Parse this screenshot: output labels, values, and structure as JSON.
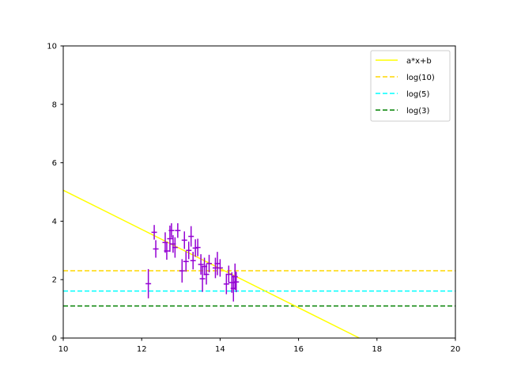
{
  "chart_data": {
    "type": "scatter",
    "xlim": [
      10,
      20
    ],
    "ylim": [
      0,
      10
    ],
    "x_ticks": [
      "10",
      "12",
      "14",
      "16",
      "18",
      "20"
    ],
    "y_ticks": [
      "0",
      "2",
      "4",
      "6",
      "8",
      "10"
    ],
    "grid": false,
    "legend_position": "top-right",
    "points": {
      "color": "#9400d3",
      "marker": "+",
      "data": [
        {
          "x": 12.17,
          "y": 1.86,
          "yerr": 0.5
        },
        {
          "x": 12.32,
          "y": 3.62,
          "yerr": 0.25
        },
        {
          "x": 12.36,
          "y": 3.05,
          "yerr": 0.3
        },
        {
          "x": 12.6,
          "y": 3.27,
          "yerr": 0.35
        },
        {
          "x": 12.64,
          "y": 2.98,
          "yerr": 0.3
        },
        {
          "x": 12.72,
          "y": 3.4,
          "yerr": 0.45
        },
        {
          "x": 12.76,
          "y": 3.68,
          "yerr": 0.25
        },
        {
          "x": 12.8,
          "y": 3.22,
          "yerr": 0.3
        },
        {
          "x": 12.85,
          "y": 3.1,
          "yerr": 0.35
        },
        {
          "x": 12.92,
          "y": 3.68,
          "yerr": 0.25
        },
        {
          "x": 13.03,
          "y": 2.3,
          "yerr": 0.4
        },
        {
          "x": 13.09,
          "y": 3.35,
          "yerr": 0.3
        },
        {
          "x": 13.13,
          "y": 2.62,
          "yerr": 0.35
        },
        {
          "x": 13.2,
          "y": 3.0,
          "yerr": 0.3
        },
        {
          "x": 13.26,
          "y": 3.48,
          "yerr": 0.35
        },
        {
          "x": 13.31,
          "y": 2.65,
          "yerr": 0.3
        },
        {
          "x": 13.37,
          "y": 3.08,
          "yerr": 0.3
        },
        {
          "x": 13.43,
          "y": 3.1,
          "yerr": 0.3
        },
        {
          "x": 13.51,
          "y": 2.52,
          "yerr": 0.35
        },
        {
          "x": 13.55,
          "y": 2.03,
          "yerr": 0.45
        },
        {
          "x": 13.6,
          "y": 2.45,
          "yerr": 0.3
        },
        {
          "x": 13.65,
          "y": 2.18,
          "yerr": 0.35
        },
        {
          "x": 13.72,
          "y": 2.55,
          "yerr": 0.3
        },
        {
          "x": 13.88,
          "y": 2.4,
          "yerr": 0.35
        },
        {
          "x": 13.93,
          "y": 2.55,
          "yerr": 0.4
        },
        {
          "x": 14.0,
          "y": 2.4,
          "yerr": 0.3
        },
        {
          "x": 14.16,
          "y": 1.85,
          "yerr": 0.35
        },
        {
          "x": 14.22,
          "y": 2.18,
          "yerr": 0.3
        },
        {
          "x": 14.3,
          "y": 1.9,
          "yerr": 0.35
        },
        {
          "x": 14.34,
          "y": 1.7,
          "yerr": 0.45
        },
        {
          "x": 14.38,
          "y": 2.1,
          "yerr": 0.45
        },
        {
          "x": 14.41,
          "y": 1.92,
          "yerr": 0.35
        }
      ]
    },
    "fit_line": {
      "label": "a*x+b",
      "color": "#ffff00",
      "style": "solid",
      "x": [
        10,
        17.55
      ],
      "y": [
        5.06,
        0
      ]
    },
    "hlines": [
      {
        "label": "log(10)",
        "color": "#ffd700",
        "style": "dashed",
        "y": 2.303
      },
      {
        "label": "log(5)",
        "color": "#00ffff",
        "style": "dashed",
        "y": 1.609
      },
      {
        "label": "log(3)",
        "color": "#008000",
        "style": "dashed",
        "y": 1.099
      }
    ]
  }
}
